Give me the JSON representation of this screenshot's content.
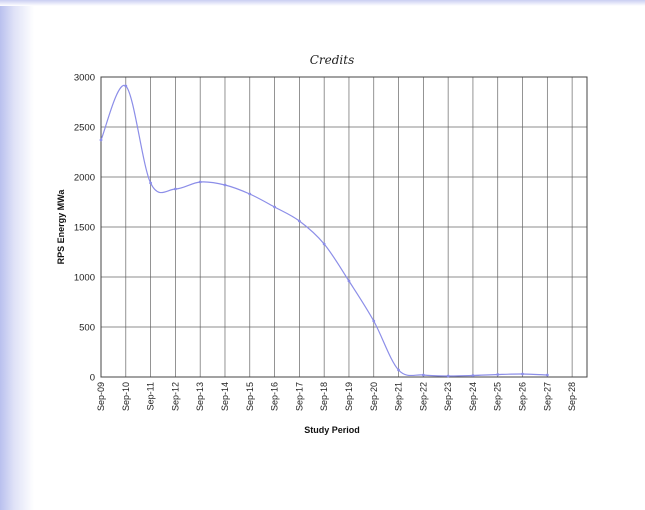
{
  "chart_data": {
    "type": "line",
    "title": "Credits",
    "xlabel": "Study Period",
    "ylabel": "RPS Energy MWa",
    "ylim": [
      0,
      3000
    ],
    "yticks": [
      0,
      500,
      1000,
      1500,
      2000,
      2500,
      3000
    ],
    "grid": true,
    "categories": [
      "Sep-09",
      "Sep-10",
      "Sep-11",
      "Sep-12",
      "Sep-13",
      "Sep-14",
      "Sep-15",
      "Sep-16",
      "Sep-17",
      "Sep-18",
      "Sep-19",
      "Sep-20",
      "Sep-21",
      "Sep-22",
      "Sep-23",
      "Sep-24",
      "Sep-25",
      "Sep-26",
      "Sep-27",
      "Sep-28"
    ],
    "series": [
      {
        "values": [
          2370,
          2910,
          1940,
          1880,
          1950,
          1920,
          1830,
          1700,
          1560,
          1330,
          960,
          560,
          70,
          20,
          10,
          15,
          25,
          30,
          20,
          null
        ],
        "color": "#8c8ee8"
      }
    ]
  }
}
